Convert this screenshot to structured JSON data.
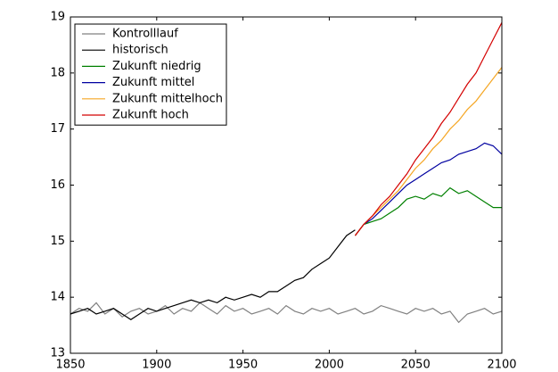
{
  "chart_data": {
    "type": "line",
    "x": [
      1850,
      1855,
      1860,
      1865,
      1870,
      1875,
      1880,
      1885,
      1890,
      1895,
      1900,
      1905,
      1910,
      1915,
      1920,
      1925,
      1930,
      1935,
      1940,
      1945,
      1950,
      1955,
      1960,
      1965,
      1970,
      1975,
      1980,
      1985,
      1990,
      1995,
      2000,
      2005,
      2010,
      2015,
      2020,
      2025,
      2030,
      2035,
      2040,
      2045,
      2050,
      2055,
      2060,
      2065,
      2070,
      2075,
      2080,
      2085,
      2090,
      2095,
      2100
    ],
    "series": [
      {
        "name": "Kontrolllauf",
        "color": "#808080",
        "values": [
          13.7,
          13.8,
          13.75,
          13.9,
          13.7,
          13.8,
          13.65,
          13.75,
          13.8,
          13.7,
          13.75,
          13.85,
          13.7,
          13.8,
          13.75,
          13.9,
          13.8,
          13.7,
          13.85,
          13.75,
          13.8,
          13.7,
          13.75,
          13.8,
          13.7,
          13.85,
          13.75,
          13.7,
          13.8,
          13.75,
          13.8,
          13.7,
          13.75,
          13.8,
          13.7,
          13.75,
          13.85,
          13.8,
          13.75,
          13.7,
          13.8,
          13.75,
          13.8,
          13.7,
          13.75,
          13.55,
          13.7,
          13.75,
          13.8,
          13.7,
          13.75
        ]
      },
      {
        "name": "historisch",
        "color": "#000000",
        "values": [
          13.7,
          13.75,
          13.8,
          13.7,
          13.75,
          13.8,
          13.7,
          13.6,
          13.7,
          13.8,
          13.75,
          13.8,
          13.85,
          13.9,
          13.95,
          13.9,
          13.95,
          13.9,
          14.0,
          13.95,
          14.0,
          14.05,
          14.0,
          14.1,
          14.1,
          14.2,
          14.3,
          14.35,
          14.5,
          14.6,
          14.7,
          14.9,
          15.1,
          15.2,
          null,
          null,
          null,
          null,
          null,
          null,
          null,
          null,
          null,
          null,
          null,
          null,
          null,
          null,
          null,
          null,
          null
        ]
      },
      {
        "name": "Zukunft niedrig",
        "color": "#008000",
        "values": [
          null,
          null,
          null,
          null,
          null,
          null,
          null,
          null,
          null,
          null,
          null,
          null,
          null,
          null,
          null,
          null,
          null,
          null,
          null,
          null,
          null,
          null,
          null,
          null,
          null,
          null,
          null,
          null,
          null,
          null,
          null,
          null,
          null,
          15.1,
          15.3,
          15.35,
          15.4,
          15.5,
          15.6,
          15.75,
          15.8,
          15.75,
          15.85,
          15.8,
          15.95,
          15.85,
          15.9,
          15.8,
          15.7,
          15.6,
          15.6
        ]
      },
      {
        "name": "Zukunft mittel",
        "color": "#0000a0",
        "values": [
          null,
          null,
          null,
          null,
          null,
          null,
          null,
          null,
          null,
          null,
          null,
          null,
          null,
          null,
          null,
          null,
          null,
          null,
          null,
          null,
          null,
          null,
          null,
          null,
          null,
          null,
          null,
          null,
          null,
          null,
          null,
          null,
          null,
          15.1,
          15.3,
          15.4,
          15.55,
          15.7,
          15.85,
          16.0,
          16.1,
          16.2,
          16.3,
          16.4,
          16.45,
          16.55,
          16.6,
          16.65,
          16.75,
          16.7,
          16.55
        ]
      },
      {
        "name": "Zukunft mittelhoch",
        "color": "#f5a623",
        "values": [
          null,
          null,
          null,
          null,
          null,
          null,
          null,
          null,
          null,
          null,
          null,
          null,
          null,
          null,
          null,
          null,
          null,
          null,
          null,
          null,
          null,
          null,
          null,
          null,
          null,
          null,
          null,
          null,
          null,
          null,
          null,
          null,
          null,
          15.1,
          15.3,
          15.45,
          15.6,
          15.75,
          15.9,
          16.1,
          16.3,
          16.45,
          16.65,
          16.8,
          17.0,
          17.15,
          17.35,
          17.5,
          17.7,
          17.9,
          18.1
        ]
      },
      {
        "name": "Zukunft hoch",
        "color": "#d40000",
        "values": [
          null,
          null,
          null,
          null,
          null,
          null,
          null,
          null,
          null,
          null,
          null,
          null,
          null,
          null,
          null,
          null,
          null,
          null,
          null,
          null,
          null,
          null,
          null,
          null,
          null,
          null,
          null,
          null,
          null,
          null,
          null,
          null,
          null,
          15.1,
          15.3,
          15.45,
          15.65,
          15.8,
          16.0,
          16.2,
          16.45,
          16.65,
          16.85,
          17.1,
          17.3,
          17.55,
          17.8,
          18.0,
          18.3,
          18.6,
          18.9
        ]
      }
    ],
    "xlim": [
      1850,
      2100
    ],
    "xticks": [
      1850,
      1900,
      1950,
      2000,
      2050,
      2100
    ],
    "ylim": [
      13,
      19
    ],
    "yticks": [
      13,
      14,
      15,
      16,
      17,
      18,
      19
    ],
    "legend": "upper left"
  }
}
